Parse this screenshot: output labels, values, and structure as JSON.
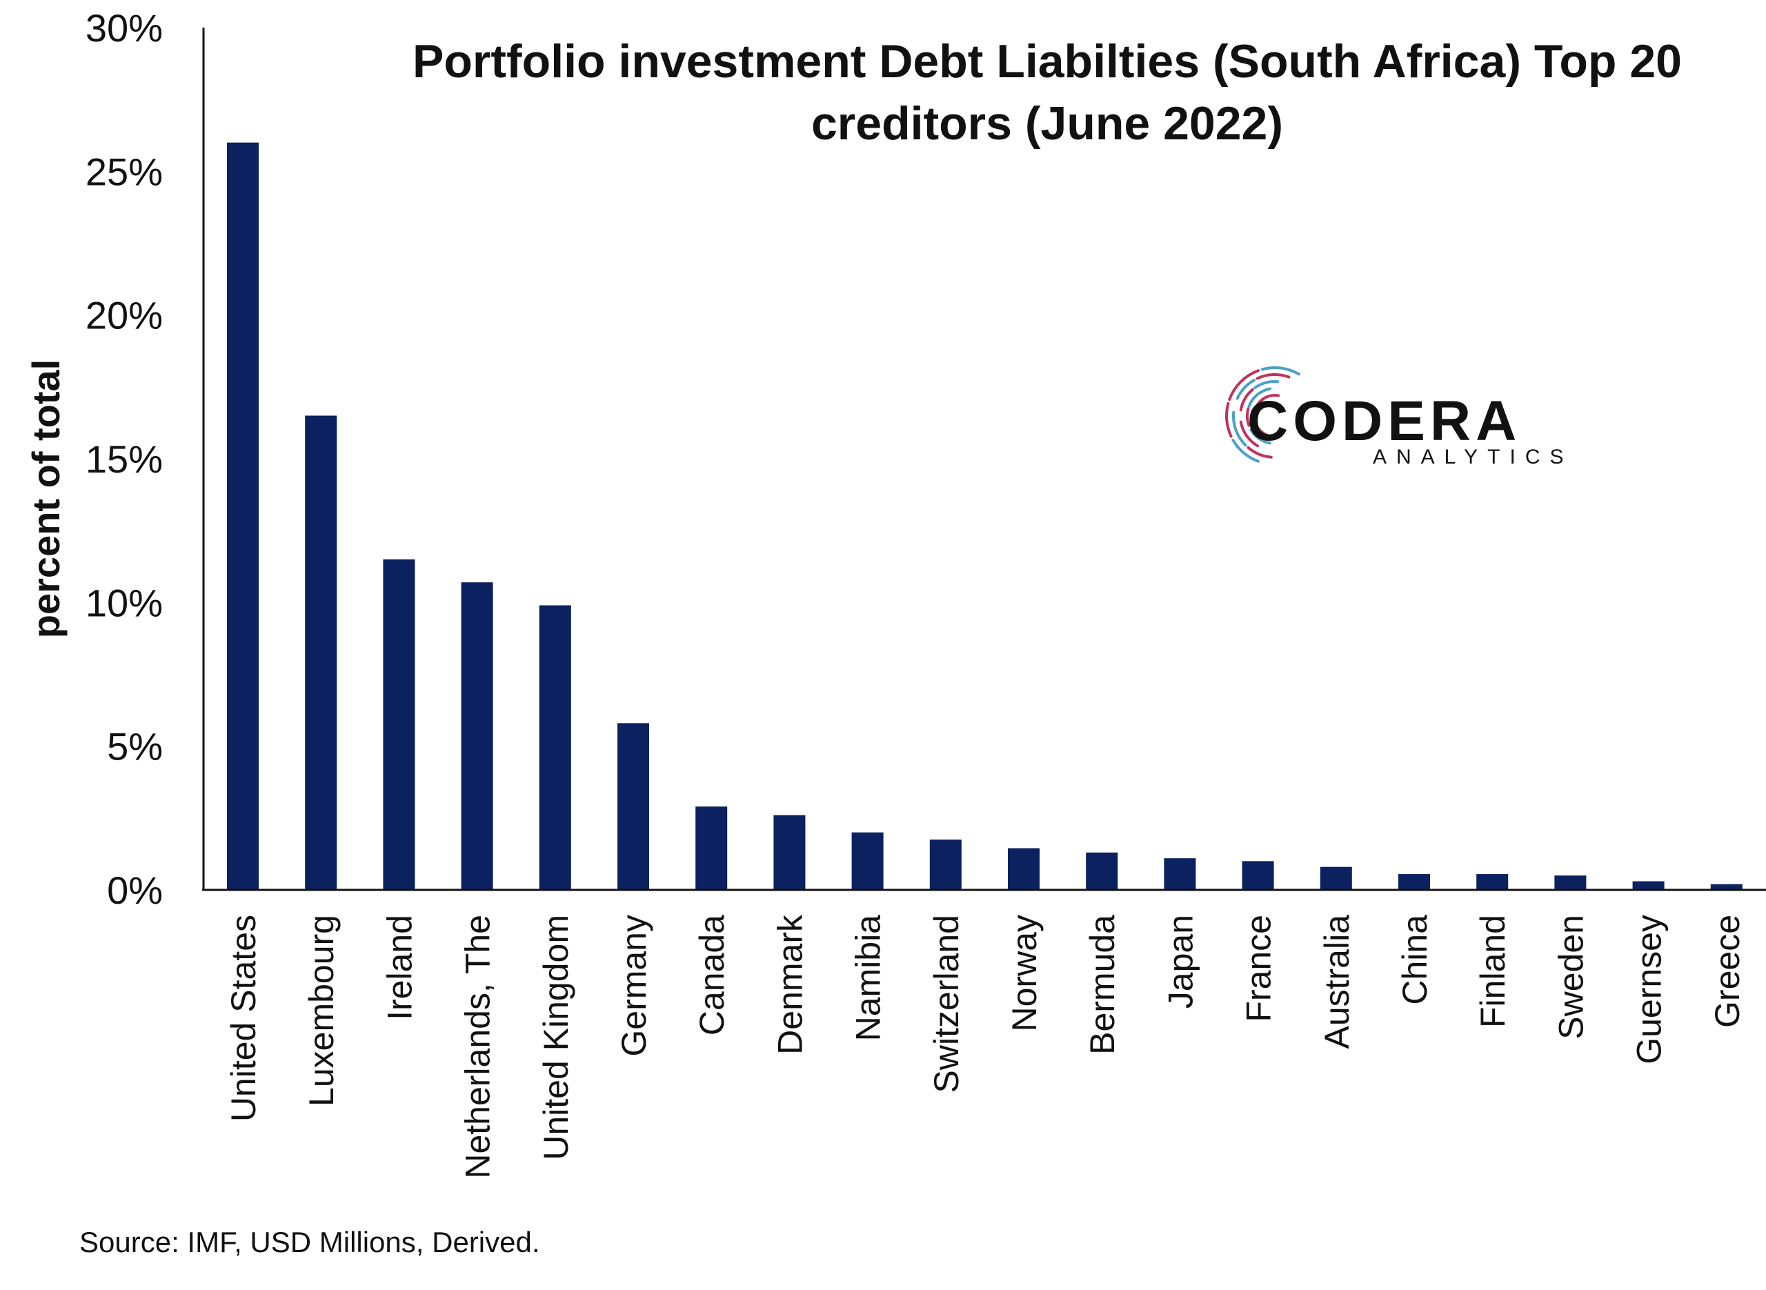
{
  "chart_data": {
    "type": "bar",
    "title": "Portfolio investment Debt Liabilties (South Africa) Top 20 creditors (June 2022)",
    "title_lines": [
      "Portfolio investment Debt Liabilties (South Africa) Top 20",
      "creditors (June 2022)"
    ],
    "xlabel": "",
    "ylabel": "percent of total",
    "ylim": [
      0,
      30
    ],
    "yticks": [
      0,
      5,
      10,
      15,
      20,
      25,
      30
    ],
    "ytick_labels": [
      "0%",
      "5%",
      "10%",
      "15%",
      "20%",
      "25%",
      "30%"
    ],
    "categories": [
      "United States",
      "Luxembourg",
      "Ireland",
      "Netherlands, The",
      "United Kingdom",
      "Germany",
      "Canada",
      "Denmark",
      "Namibia",
      "Switzerland",
      "Norway",
      "Bermuda",
      "Japan",
      "France",
      "Australia",
      "China",
      "Finland",
      "Sweden",
      "Guernsey",
      "Greece"
    ],
    "values": [
      26.0,
      16.5,
      11.5,
      10.7,
      9.9,
      5.8,
      2.9,
      2.6,
      2.0,
      1.75,
      1.45,
      1.3,
      1.1,
      1.0,
      0.8,
      0.55,
      0.55,
      0.5,
      0.3,
      0.2
    ],
    "bar_color": "#0b2160",
    "grid": false,
    "legend": "none"
  },
  "source": "Source: IMF, USD Millions, Derived.",
  "logo": {
    "name": "CODERA",
    "subtitle": "ANALYTICS",
    "colors": {
      "accent_red": "#c0345a",
      "accent_blue": "#4aa0c8",
      "subtitle": "#a3355e"
    }
  }
}
